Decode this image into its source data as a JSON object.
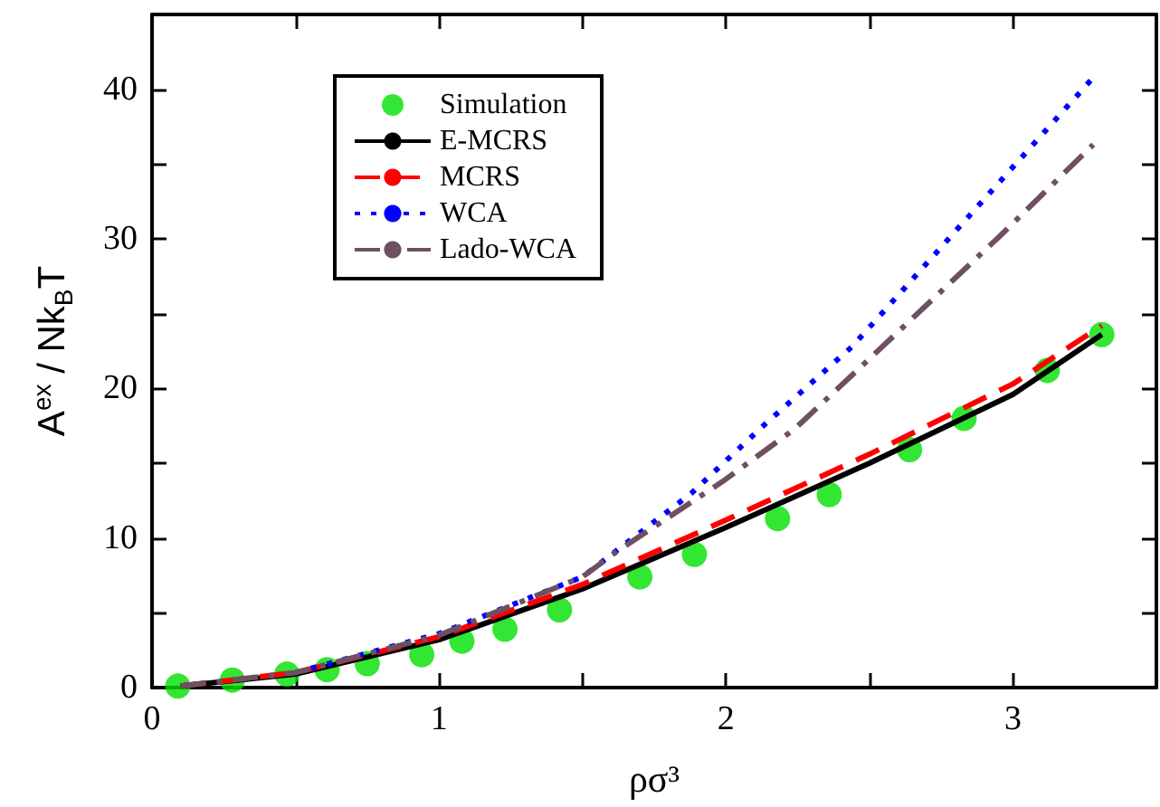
{
  "chart_data": {
    "type": "line",
    "xlabel": "ρσ³",
    "ylabel": "A$^{ex}$ / Nk$_{B}$T",
    "xlim": [
      0,
      3.5
    ],
    "ylim": [
      0,
      45
    ],
    "xticks": [
      0,
      {
        "value": 0.5,
        "label": null
      },
      1,
      {
        "value": 1.5,
        "label": null
      },
      2,
      {
        "value": 2.5,
        "label": null
      },
      3
    ],
    "yticks": [
      0,
      {
        "value": 5,
        "label": null
      },
      10,
      {
        "value": 15,
        "label": null
      },
      20,
      {
        "value": 25,
        "label": null
      },
      30,
      {
        "value": 35,
        "label": null
      },
      40
    ],
    "grid": false,
    "legend": "top left",
    "series": [
      {
        "name": "Simulation",
        "type": "scatter",
        "marker": "circle",
        "color": "#00e000",
        "x": [
          0.09,
          0.28,
          0.47,
          0.61,
          0.75,
          0.94,
          1.08,
          1.23,
          1.42,
          1.7,
          1.89,
          2.18,
          2.36,
          2.64,
          2.83,
          3.12,
          3.31
        ],
        "values": [
          0.1,
          0.5,
          0.9,
          1.2,
          1.6,
          2.2,
          3.1,
          3.9,
          5.2,
          7.4,
          8.9,
          11.3,
          12.9,
          15.9,
          18.0,
          21.2,
          23.6
        ]
      },
      {
        "name": "E-MCRS",
        "line_style": "solid",
        "color": "#000000",
        "x": [
          0.1,
          0.5,
          1.0,
          1.5,
          2.0,
          2.5,
          3.0,
          3.31
        ],
        "values": [
          0.1,
          0.9,
          3.2,
          6.6,
          10.7,
          15.0,
          19.6,
          23.6
        ]
      },
      {
        "name": "MCRS",
        "line_style": "dashed",
        "color": "#ff0000",
        "x": [
          0.1,
          0.5,
          1.0,
          1.5,
          2.0,
          2.5,
          3.0,
          3.31
        ],
        "values": [
          0.1,
          1.0,
          3.4,
          6.9,
          11.2,
          15.6,
          20.3,
          24.2
        ]
      },
      {
        "name": "WCA",
        "line_style": "dotted",
        "color": "#0000ff",
        "x": [
          0.5,
          1.0,
          1.5,
          1.88,
          2.13,
          2.44,
          2.86,
          3.29
        ],
        "values": [
          1.0,
          3.6,
          7.4,
          13.0,
          17.5,
          22.8,
          31.8,
          41.0
        ]
      },
      {
        "name": "Lado-WCA",
        "line_style": "dashdot",
        "color": "#6e5062",
        "x": [
          0.1,
          0.5,
          1.0,
          1.5,
          1.62,
          1.99,
          2.24,
          2.49,
          2.95,
          3.28
        ],
        "values": [
          0.1,
          1.0,
          3.5,
          7.4,
          9.1,
          13.8,
          17.3,
          21.8,
          30.1,
          36.3
        ]
      }
    ]
  }
}
